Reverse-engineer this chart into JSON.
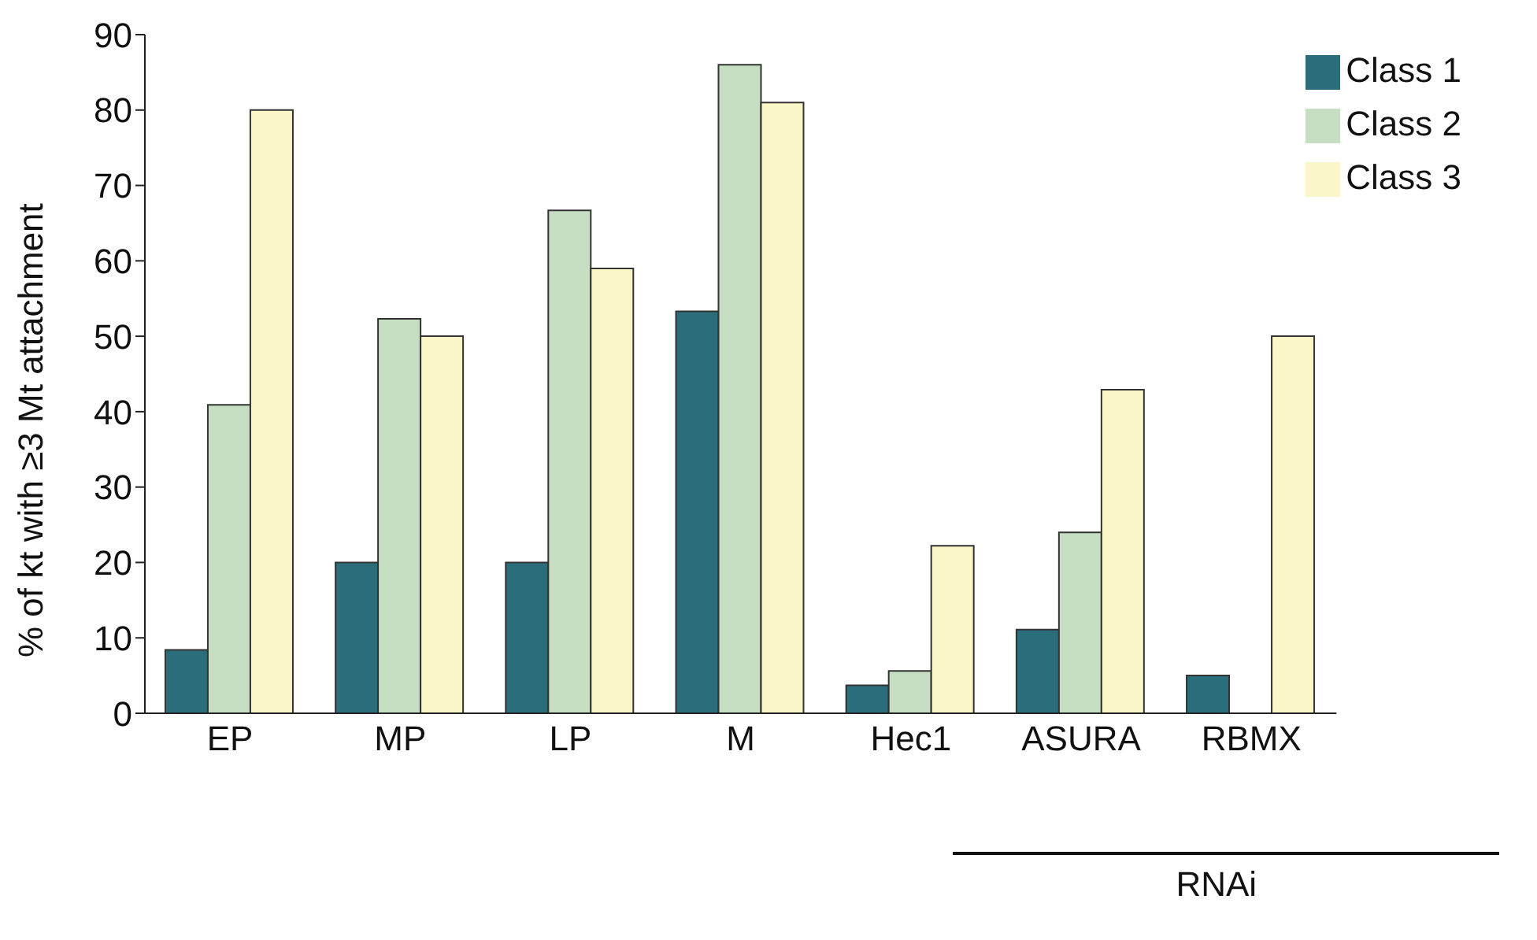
{
  "chart_data": {
    "type": "bar",
    "ylabel": "% of kt with ≥3 Mt attachment",
    "categories": [
      "EP",
      "MP",
      "LP",
      "M",
      "Hec1",
      "ASURA",
      "RBMX"
    ],
    "series": [
      {
        "name": "Class 1",
        "color": "#2a6e7c",
        "values": [
          8.4,
          20,
          20,
          53.3,
          3.7,
          11.1,
          5
        ]
      },
      {
        "name": "Class 2",
        "color": "#c6dfc2",
        "values": [
          40.9,
          52.3,
          66.7,
          86,
          5.6,
          24,
          0
        ]
      },
      {
        "name": "Class 3",
        "color": "#faf6c8",
        "values": [
          80,
          50,
          59,
          81,
          22.2,
          42.9,
          50
        ]
      }
    ],
    "ylim": [
      0,
      90
    ],
    "yticks": [
      0,
      10,
      20,
      30,
      40,
      50,
      60,
      70,
      80,
      90
    ],
    "grid": false,
    "legend": "top right",
    "annotations": [
      "RNAi"
    ]
  }
}
